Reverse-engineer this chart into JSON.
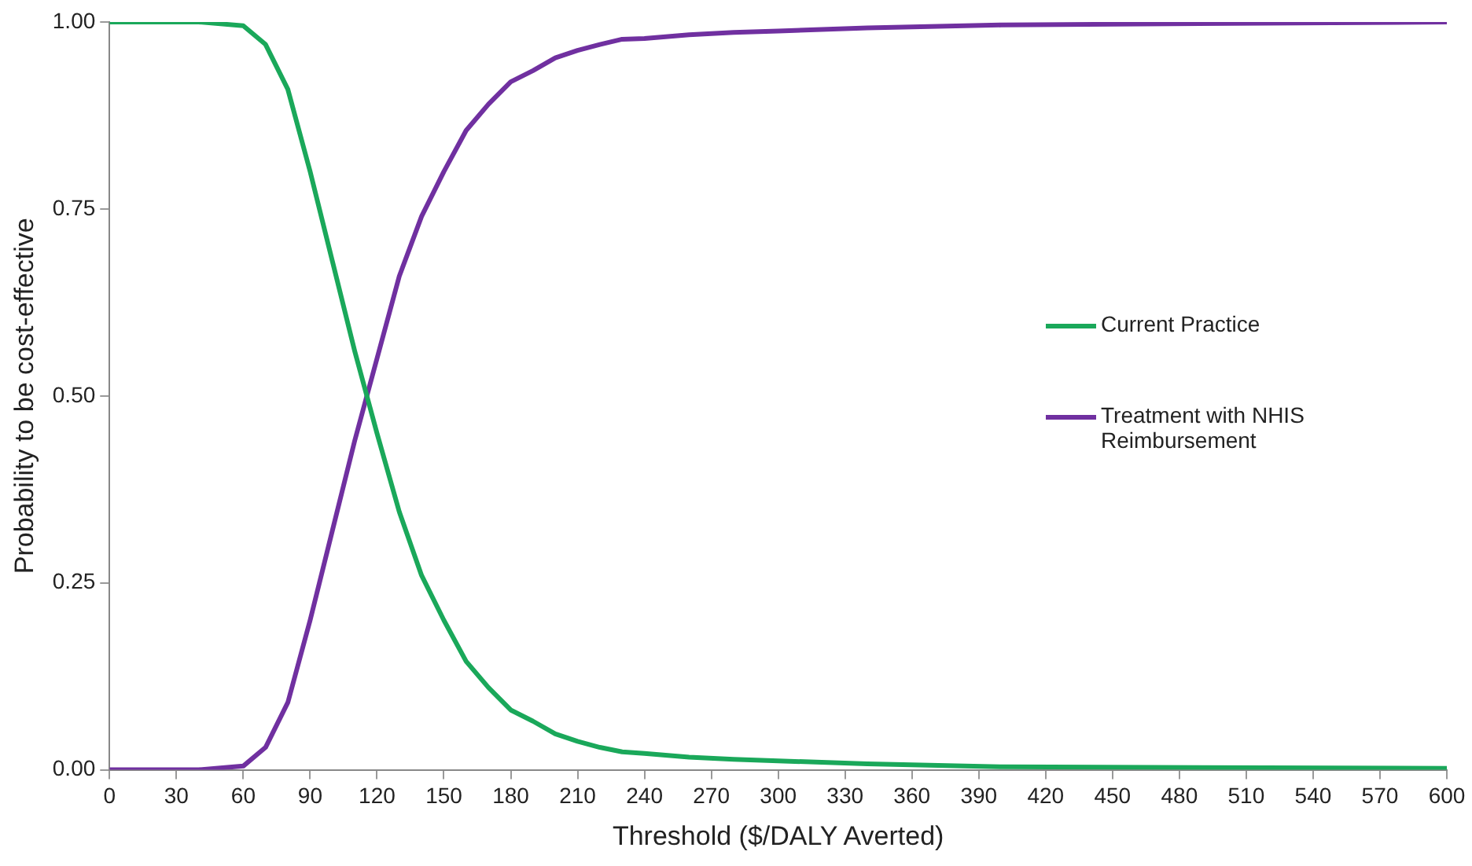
{
  "chart_data": {
    "type": "line",
    "xlabel": "Threshold ($/DALY Averted)",
    "ylabel": "Probability to be cost-effective",
    "x": [
      0,
      40,
      60,
      70,
      80,
      90,
      100,
      110,
      120,
      130,
      140,
      150,
      160,
      170,
      180,
      190,
      200,
      210,
      220,
      230,
      240,
      260,
      280,
      300,
      340,
      400,
      600
    ],
    "series": [
      {
        "name": "Current Practice",
        "color": "#1aa85a",
        "values": [
          1,
          1,
          0.995,
          0.97,
          0.91,
          0.8,
          0.68,
          0.56,
          0.45,
          0.345,
          0.26,
          0.2,
          0.145,
          0.11,
          0.08,
          0.065,
          0.048,
          0.038,
          0.03,
          0.024,
          0.022,
          0.017,
          0.014,
          0.012,
          0.008,
          0.004,
          0.002
        ]
      },
      {
        "name": "Treatment with NHIS Reimbursement",
        "color": "#7030a0",
        "values": [
          0,
          0,
          0.005,
          0.03,
          0.09,
          0.2,
          0.32,
          0.44,
          0.55,
          0.66,
          0.74,
          0.8,
          0.855,
          0.89,
          0.92,
          0.935,
          0.952,
          0.962,
          0.97,
          0.977,
          0.978,
          0.983,
          0.986,
          0.988,
          0.992,
          0.996,
          1
        ]
      }
    ],
    "xlim": [
      0,
      600
    ],
    "xticks": [
      0,
      30,
      60,
      90,
      120,
      150,
      180,
      210,
      240,
      270,
      300,
      330,
      360,
      390,
      420,
      450,
      480,
      510,
      540,
      570,
      600
    ],
    "ylim": [
      0,
      1
    ],
    "yticks": [
      {
        "value": 0,
        "label": "0.00"
      },
      {
        "value": 0.25,
        "label": "0.25"
      },
      {
        "value": 0.5,
        "label": "0.50"
      },
      {
        "value": 0.75,
        "label": "0.75"
      },
      {
        "value": 1,
        "label": "1.00"
      }
    ],
    "grid": false,
    "legend": "right",
    "marker": "none",
    "line_style": "solid"
  }
}
